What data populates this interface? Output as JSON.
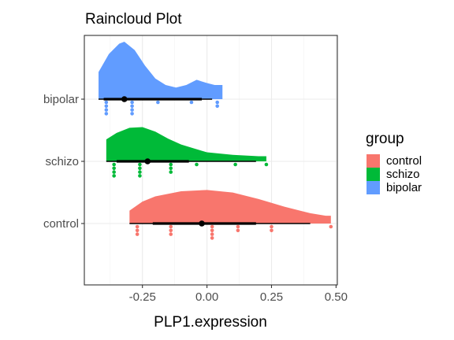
{
  "chart_data": {
    "type": "raincloud",
    "title": "Raincloud Plot",
    "xlabel": "PLP1.expression",
    "ylabel": "",
    "xlim": [
      -0.475,
      0.505
    ],
    "x_ticks": [
      -0.25,
      0.0,
      0.25,
      0.5
    ],
    "x_tick_labels": [
      "-0.25",
      "0.00",
      "0.25",
      "0.50"
    ],
    "categories": [
      "control",
      "schizo",
      "bipolar"
    ],
    "grid": true,
    "legend": {
      "title": "group",
      "placement": "right",
      "entries": [
        "control",
        "schizo",
        "bipolar"
      ]
    },
    "series": [
      {
        "name": "control",
        "color": "#F8766D",
        "points": [
          -0.27,
          -0.27,
          -0.27,
          -0.14,
          -0.14,
          -0.14,
          0.02,
          0.02,
          0.02,
          0.02,
          0.12,
          0.12,
          0.25,
          0.25,
          0.48
        ],
        "summary": {
          "mean": -0.02,
          "lower": -0.21,
          "upper": 0.19,
          "min": -0.3,
          "max": 0.4
        },
        "density": [
          [
            -0.3,
            0.0
          ],
          [
            -0.3,
            0.2
          ],
          [
            -0.25,
            0.34
          ],
          [
            -0.2,
            0.42
          ],
          [
            -0.1,
            0.5
          ],
          [
            0.0,
            0.52
          ],
          [
            0.1,
            0.48
          ],
          [
            0.2,
            0.38
          ],
          [
            0.3,
            0.26
          ],
          [
            0.4,
            0.16
          ],
          [
            0.46,
            0.12
          ],
          [
            0.48,
            0.12
          ],
          [
            0.48,
            0.0
          ]
        ]
      },
      {
        "name": "schizo",
        "color": "#00BA38",
        "points": [
          -0.36,
          -0.36,
          -0.36,
          -0.36,
          -0.26,
          -0.26,
          -0.26,
          -0.26,
          -0.14,
          -0.14,
          -0.14,
          -0.04,
          0.11,
          0.23
        ],
        "summary": {
          "mean": -0.23,
          "lower": -0.35,
          "upper": -0.07,
          "min": -0.39,
          "max": 0.19
        },
        "density": [
          [
            -0.39,
            0.0
          ],
          [
            -0.39,
            0.34
          ],
          [
            -0.35,
            0.44
          ],
          [
            -0.3,
            0.52
          ],
          [
            -0.25,
            0.53
          ],
          [
            -0.2,
            0.46
          ],
          [
            -0.15,
            0.35
          ],
          [
            -0.1,
            0.26
          ],
          [
            -0.05,
            0.2
          ],
          [
            0.0,
            0.14
          ],
          [
            0.1,
            0.1
          ],
          [
            0.2,
            0.08
          ],
          [
            0.23,
            0.08
          ],
          [
            0.23,
            0.0
          ]
        ]
      },
      {
        "name": "bipolar",
        "color": "#619CFF",
        "points": [
          -0.39,
          -0.39,
          -0.39,
          -0.39,
          -0.29,
          -0.29,
          -0.29,
          -0.29,
          -0.19,
          -0.06,
          0.04,
          0.04
        ],
        "summary": {
          "mean": -0.32,
          "lower": -0.4,
          "upper": -0.02,
          "min": -0.42,
          "max": 0.02
        },
        "density": [
          [
            -0.42,
            0.0
          ],
          [
            -0.42,
            0.42
          ],
          [
            -0.38,
            0.7
          ],
          [
            -0.34,
            0.86
          ],
          [
            -0.32,
            0.89
          ],
          [
            -0.28,
            0.76
          ],
          [
            -0.24,
            0.52
          ],
          [
            -0.2,
            0.32
          ],
          [
            -0.16,
            0.22
          ],
          [
            -0.12,
            0.18
          ],
          [
            -0.08,
            0.22
          ],
          [
            -0.04,
            0.3
          ],
          [
            0.0,
            0.25
          ],
          [
            0.03,
            0.22
          ],
          [
            0.06,
            0.22
          ],
          [
            0.06,
            0.0
          ]
        ]
      }
    ]
  }
}
